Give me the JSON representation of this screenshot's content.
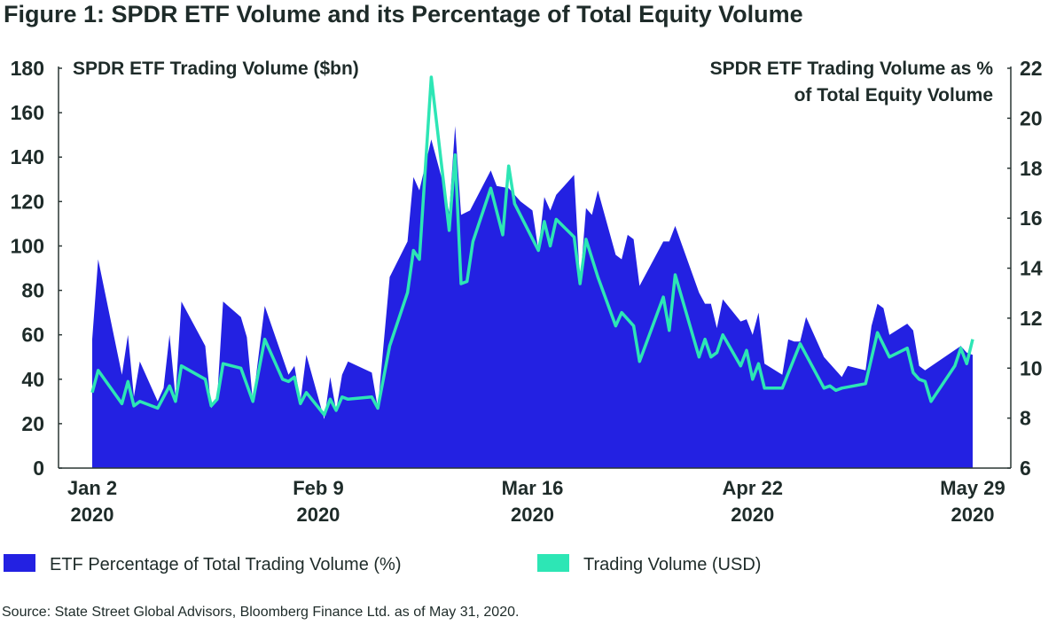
{
  "chart_data": {
    "type": "area+line",
    "title": "Figure 1: SPDR ETF Volume and its Percentage of Total Equity Volume",
    "left_axis": {
      "label": "SPDR ETF Trading Volume ($bn)",
      "range": [
        0,
        180
      ],
      "ticks": [
        "0",
        "20",
        "40",
        "60",
        "80",
        "100",
        "120",
        "140",
        "160",
        "180"
      ]
    },
    "right_axis": {
      "label_lines": [
        "SPDR ETF Trading Volume as %",
        "of Total Equity Volume"
      ],
      "range": [
        6,
        22
      ],
      "ticks": [
        "6",
        "8",
        "10",
        "12",
        "14",
        "16",
        "18",
        "20",
        "22"
      ]
    },
    "x_axis": {
      "unit": "days since Jan 2 2020",
      "range": [
        0,
        148
      ],
      "ticks": [
        {
          "day": 0,
          "line1": "Jan 2",
          "line2": "2020"
        },
        {
          "day": 38,
          "line1": "Feb 9",
          "line2": "2020"
        },
        {
          "day": 74,
          "line1": "Mar 16",
          "line2": "2020"
        },
        {
          "day": 111,
          "line1": "Apr 22",
          "line2": "2020"
        },
        {
          "day": 148,
          "line1": "May 29",
          "line2": "2020"
        }
      ]
    },
    "grid": false,
    "legend_position": "bottom",
    "series": [
      {
        "name": "ETF Percentage of Total Trading Volume (%)",
        "kind": "area",
        "color": "#2321e2",
        "axis": "left",
        "x": [
          0,
          1,
          5,
          6,
          7,
          8,
          11,
          12,
          13,
          14,
          15,
          19,
          20,
          21,
          22,
          25,
          26,
          27,
          29,
          33,
          34,
          35,
          36,
          39,
          40,
          41,
          42,
          43,
          47,
          48,
          50,
          53,
          54,
          55,
          57,
          59,
          60,
          61,
          62,
          63.5,
          67,
          68,
          70,
          72,
          74,
          75,
          76,
          77,
          78,
          81,
          82,
          83,
          84,
          85,
          88,
          89,
          90,
          91,
          92,
          96,
          97,
          98,
          102,
          103,
          104,
          105,
          106,
          109,
          110,
          111,
          112,
          113,
          116,
          117,
          118,
          119,
          120,
          123,
          126,
          127,
          130,
          131,
          132,
          133,
          134,
          137,
          138,
          139,
          140,
          146,
          147,
          148
        ],
        "values": [
          58,
          94,
          42,
          60,
          32,
          48,
          30,
          36,
          60,
          32,
          75,
          55,
          27,
          31,
          75,
          68,
          59,
          30,
          73,
          42,
          46,
          30,
          51,
          22,
          41,
          26,
          42,
          48,
          43,
          27,
          86,
          102,
          131,
          125,
          148,
          128,
          115,
          154,
          114,
          116,
          134,
          127,
          126,
          120,
          116,
          98,
          122,
          116,
          123,
          132,
          83,
          117,
          114,
          125,
          96,
          94,
          105,
          103,
          82,
          102,
          102,
          109,
          79,
          74,
          74,
          63,
          76,
          66,
          67,
          60,
          70,
          47,
          42,
          58,
          57,
          57,
          68,
          50,
          41,
          46,
          44,
          64,
          74,
          72,
          60,
          65,
          62,
          46,
          44,
          55,
          52,
          51
        ]
      },
      {
        "name": "Trading Volume (USD)",
        "kind": "line",
        "color": "#2de6b5",
        "axis": "left",
        "x": [
          0,
          1,
          5,
          6,
          7,
          8,
          11,
          13,
          14,
          15,
          19,
          20,
          21,
          22,
          25,
          27,
          29,
          32,
          33,
          34,
          35,
          36,
          39,
          40,
          41,
          42,
          43,
          47,
          48,
          50,
          53,
          54,
          55,
          57,
          60,
          61,
          62,
          63,
          64,
          67,
          69,
          70,
          71,
          75,
          76,
          77,
          78,
          81,
          82,
          83,
          85,
          88,
          89,
          91,
          92,
          96,
          97,
          98,
          102,
          103,
          104,
          105,
          106,
          109,
          110,
          111,
          112,
          113,
          116,
          119,
          123,
          124,
          125,
          126,
          130,
          132,
          134,
          137,
          138,
          139,
          140,
          141,
          145,
          146,
          147,
          148
        ],
        "values": [
          34,
          44,
          29,
          39,
          28,
          30,
          27,
          37,
          30,
          46,
          40,
          28,
          31,
          47,
          45,
          30,
          58,
          40,
          39,
          41,
          29,
          34,
          24,
          31,
          26,
          32,
          31,
          32,
          27,
          55,
          79,
          98,
          94,
          176,
          107,
          141,
          83,
          84,
          102,
          126,
          105,
          136,
          119,
          98,
          111,
          100,
          112,
          104,
          83,
          103,
          86,
          64,
          70,
          64,
          48,
          77,
          62,
          87,
          50,
          58,
          50,
          52,
          60,
          46,
          53,
          40,
          47,
          36,
          36,
          56,
          36,
          37,
          35,
          36,
          38,
          61,
          50,
          54,
          43,
          40,
          39,
          30,
          46,
          54,
          47,
          58
        ]
      }
    ]
  },
  "legend": [
    {
      "label": "ETF Percentage of Total Trading Volume (%)",
      "color": "#2321e2"
    },
    {
      "label": "Trading Volume (USD)",
      "color": "#2de6b5"
    }
  ],
  "source": "Source: State Street Global Advisors, Bloomberg Finance Ltd. as of May 31, 2020."
}
